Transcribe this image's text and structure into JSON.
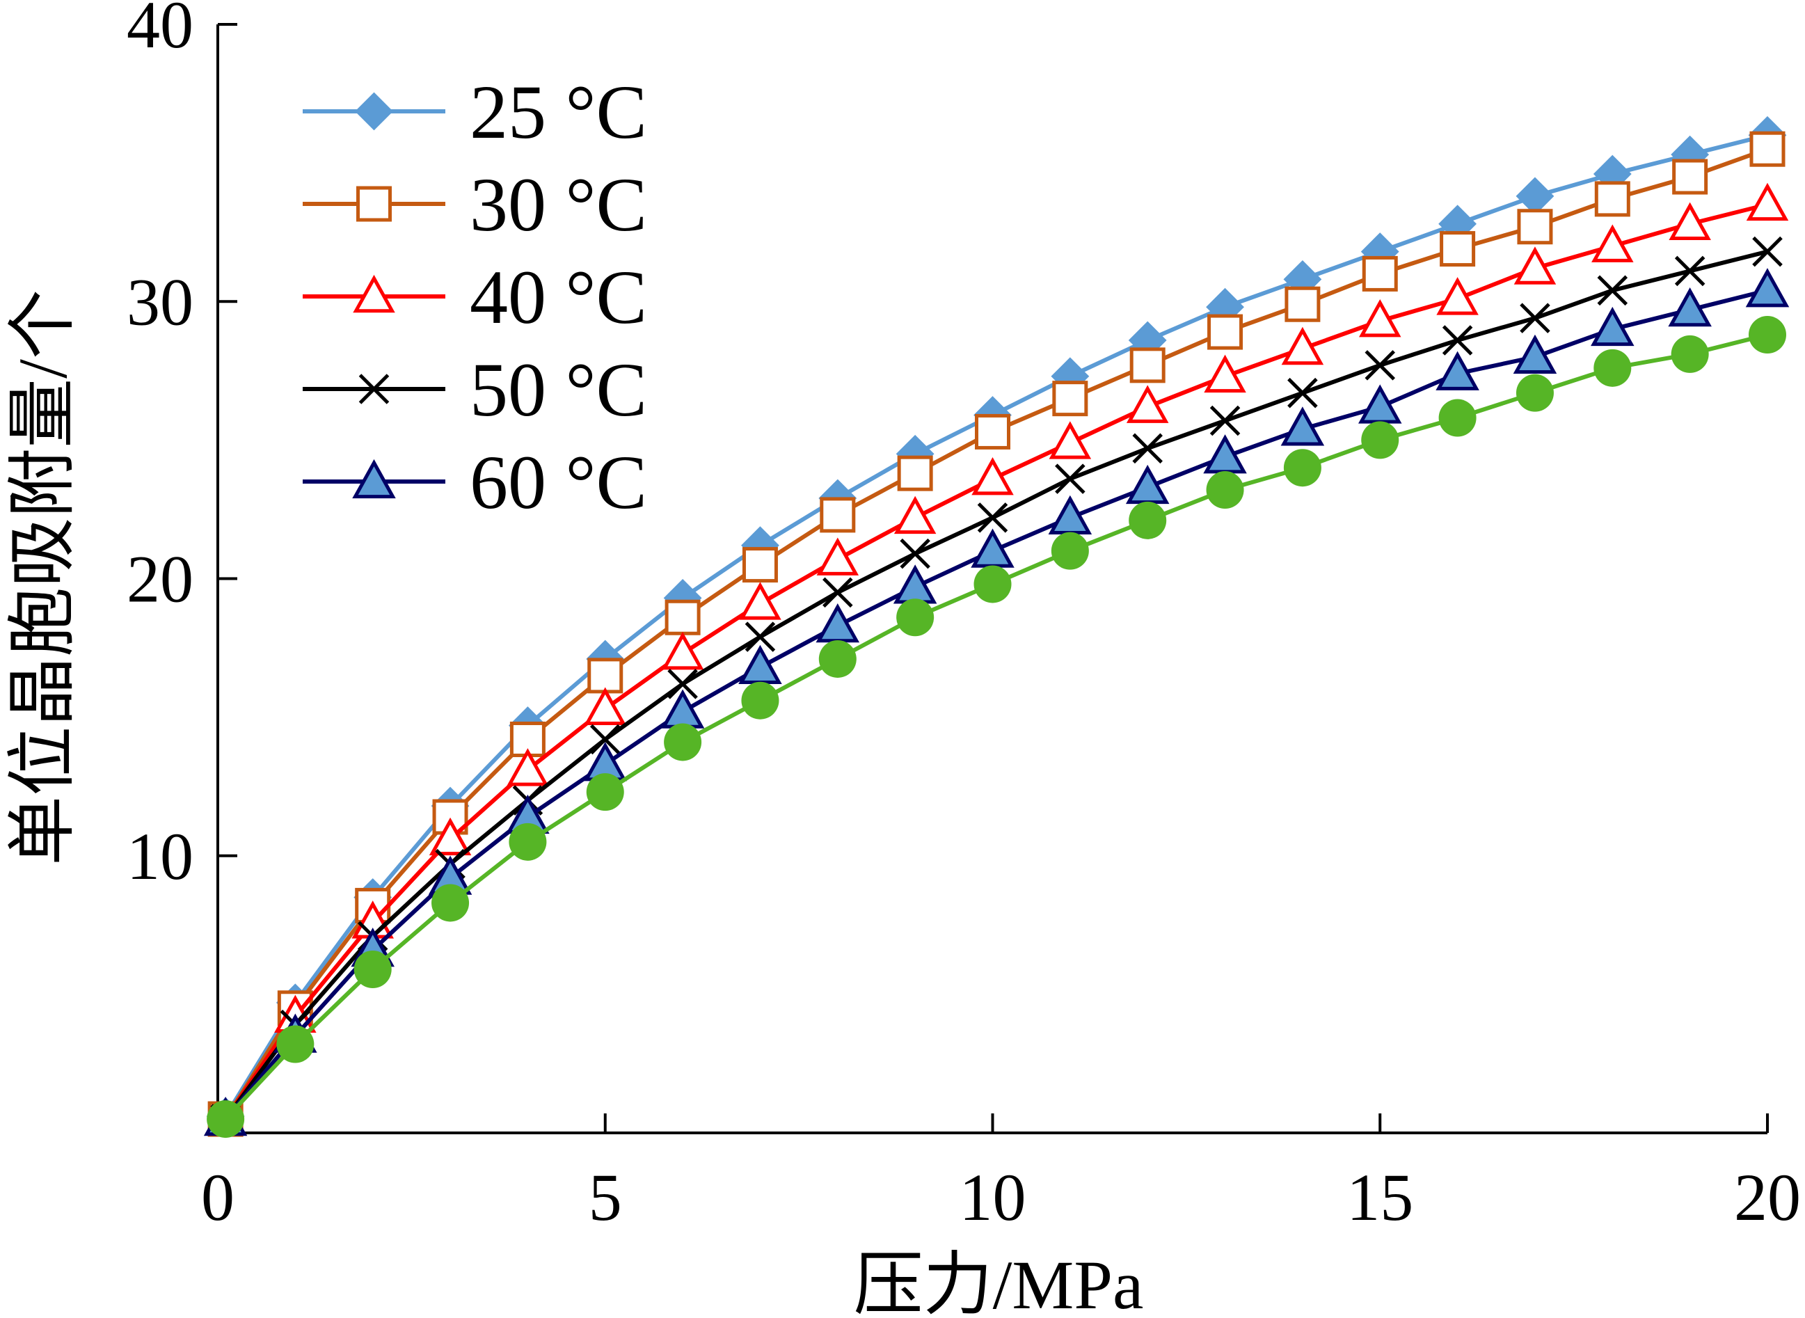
{
  "chart_data": {
    "type": "line",
    "xlabel": "压力/MPa",
    "ylabel": "单位晶胞吸附量/个",
    "xlim": [
      0,
      20
    ],
    "ylim": [
      0,
      40
    ],
    "x_ticks": [
      "0",
      "5",
      "10",
      "15",
      "20"
    ],
    "y_ticks": [
      "10",
      "20",
      "30",
      "40"
    ],
    "x_tick_values": [
      0,
      5,
      10,
      15,
      20
    ],
    "y_tick_values": [
      10,
      20,
      30,
      40
    ],
    "legend_position": "top-left",
    "grid": false,
    "x": [
      0.1,
      1,
      2,
      3,
      4,
      5,
      6,
      7,
      8,
      9,
      10,
      11,
      12,
      13,
      14,
      15,
      16,
      17,
      18,
      19,
      20
    ],
    "series": [
      {
        "name": "25 °C",
        "color": "#5b9bd5",
        "marker": "diamond-filled",
        "values": [
          0.6,
          4.7,
          8.5,
          11.8,
          14.7,
          17.1,
          19.3,
          21.2,
          22.9,
          24.5,
          25.9,
          27.3,
          28.6,
          29.8,
          30.8,
          31.8,
          32.8,
          33.8,
          34.6,
          35.3,
          36.0
        ]
      },
      {
        "name": "30 °C",
        "color": "#c55a11",
        "marker": "square-open",
        "values": [
          0.5,
          4.5,
          8.2,
          11.4,
          14.2,
          16.5,
          18.6,
          20.5,
          22.3,
          23.8,
          25.3,
          26.5,
          27.7,
          28.9,
          29.9,
          31.0,
          31.9,
          32.7,
          33.7,
          34.5,
          35.5
        ]
      },
      {
        "name": "40 °C",
        "color": "#ff0000",
        "marker": "triangle-open",
        "values": [
          0.5,
          4.2,
          7.6,
          10.6,
          13.1,
          15.3,
          17.3,
          19.1,
          20.7,
          22.2,
          23.6,
          24.9,
          26.2,
          27.3,
          28.3,
          29.3,
          30.1,
          31.2,
          32.0,
          32.8,
          33.5
        ]
      },
      {
        "name": "50 °C",
        "color": "#000000",
        "marker": "x",
        "values": [
          0.5,
          3.9,
          7.1,
          9.7,
          12.0,
          14.2,
          16.2,
          17.9,
          19.5,
          20.9,
          22.2,
          23.6,
          24.7,
          25.7,
          26.7,
          27.7,
          28.6,
          29.4,
          30.4,
          31.1,
          31.8
        ]
      },
      {
        "name": "60 °C",
        "color": "#000066",
        "fill": "#5b9bd5",
        "marker": "triangle-filled",
        "values": [
          0.5,
          3.5,
          6.6,
          9.2,
          11.4,
          13.3,
          15.2,
          16.8,
          18.3,
          19.7,
          21.0,
          22.2,
          23.3,
          24.4,
          25.4,
          26.2,
          27.4,
          28.0,
          29.0,
          29.7,
          30.4
        ]
      },
      {
        "color": "#56b526",
        "marker": "circle-filled",
        "values": [
          0.5,
          3.2,
          5.9,
          8.3,
          10.5,
          12.3,
          14.1,
          15.6,
          17.1,
          18.6,
          19.8,
          21.0,
          22.1,
          23.2,
          24.0,
          25.0,
          25.8,
          26.7,
          27.6,
          28.1,
          28.8
        ]
      }
    ]
  }
}
